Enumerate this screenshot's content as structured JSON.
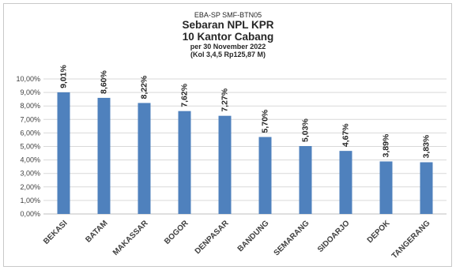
{
  "header": {
    "code": "EBA-SP  SMF-BTN05",
    "title_line1": "Sebaran NPL KPR",
    "title_line2": "10 Kantor Cabang",
    "date_line": "per 30 November 2022",
    "note_line": "(Kol 3,4,5 Rp125,87  M)"
  },
  "chart_data": {
    "type": "bar",
    "categories": [
      "BEKASI",
      "BATAM",
      "MAKASSAR",
      "BOGOR",
      "DENPASAR",
      "BANDUNG",
      "SEMARANG",
      "SIDOARJO",
      "DEPOK",
      "TANGERANG"
    ],
    "values": [
      9.01,
      8.6,
      8.22,
      7.62,
      7.27,
      5.7,
      5.03,
      4.67,
      3.89,
      3.83
    ],
    "value_labels": [
      "9,01%",
      "8,60%",
      "8,22%",
      "7,62%",
      "7,27%",
      "5,70%",
      "5,03%",
      "4,67%",
      "3,89%",
      "3,83%"
    ],
    "y_ticks": [
      "0,00%",
      "1,00%",
      "2,00%",
      "3,00%",
      "4,00%",
      "5,00%",
      "6,00%",
      "7,00%",
      "8,00%",
      "9,00%",
      "10,00%"
    ],
    "ylim": [
      0,
      10
    ],
    "grid": true,
    "bar_color": "#4f81bd",
    "grid_color": "#d9d9d9"
  }
}
